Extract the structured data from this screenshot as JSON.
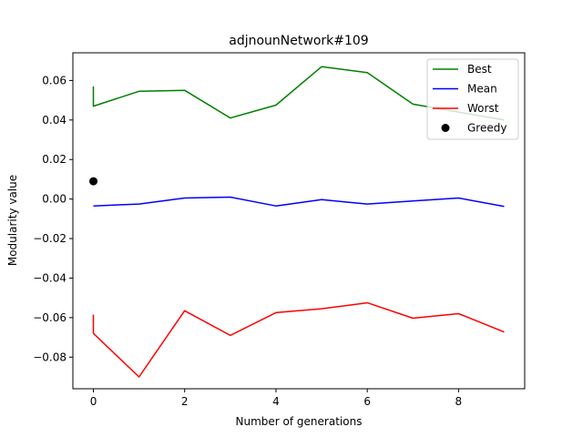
{
  "chart_data": {
    "type": "line",
    "title": "adjnounNetwork#109",
    "xlabel": "Number of generations",
    "ylabel": "Modularity value",
    "xlim": [
      -0.45,
      9.45
    ],
    "ylim": [
      -0.096,
      0.074
    ],
    "xticks": [
      0,
      2,
      4,
      6,
      8
    ],
    "xtick_labels": [
      "0",
      "2",
      "4",
      "6",
      "8"
    ],
    "yticks": [
      -0.08,
      -0.06,
      -0.04,
      -0.02,
      0.0,
      0.02,
      0.04,
      0.06
    ],
    "ytick_labels": [
      "−0.08",
      "−0.06",
      "−0.04",
      "−0.02",
      "0.00",
      "0.02",
      "0.04",
      "0.06"
    ],
    "grid": false,
    "legend_position": "top-right",
    "series": [
      {
        "name": "Best",
        "color": "#008000",
        "points": [
          [
            0,
            0.057
          ],
          [
            0,
            0.047
          ],
          [
            1,
            0.0545
          ],
          [
            2,
            0.055
          ],
          [
            3,
            0.041
          ],
          [
            4,
            0.0475
          ],
          [
            5,
            0.067
          ],
          [
            6,
            0.064
          ],
          [
            7,
            0.048
          ],
          [
            8,
            0.044
          ],
          [
            9,
            0.04
          ]
        ]
      },
      {
        "name": "Mean",
        "color": "#0000ff",
        "points": [
          [
            0,
            -0.0035
          ],
          [
            1,
            -0.0025
          ],
          [
            2,
            0.0005
          ],
          [
            3,
            0.001
          ],
          [
            4,
            -0.0035
          ],
          [
            5,
            -0.0003
          ],
          [
            6,
            -0.0025
          ],
          [
            7,
            -0.001
          ],
          [
            8,
            0.0005
          ],
          [
            9,
            -0.0037
          ]
        ]
      },
      {
        "name": "Worst",
        "color": "#ff0000",
        "points": [
          [
            0,
            -0.0585
          ],
          [
            0,
            -0.068
          ],
          [
            1,
            -0.09
          ],
          [
            2,
            -0.0565
          ],
          [
            3,
            -0.069
          ],
          [
            4,
            -0.0575
          ],
          [
            5,
            -0.0555
          ],
          [
            6,
            -0.0525
          ],
          [
            7,
            -0.0603
          ],
          [
            8,
            -0.058
          ],
          [
            9,
            -0.0673
          ]
        ]
      }
    ],
    "scatter": [
      {
        "name": "Greedy",
        "color": "#000000",
        "points": [
          [
            0,
            0.009
          ]
        ]
      }
    ],
    "legend": [
      {
        "label": "Best",
        "kind": "line",
        "color": "#008000"
      },
      {
        "label": "Mean",
        "kind": "line",
        "color": "#0000ff"
      },
      {
        "label": "Worst",
        "kind": "line",
        "color": "#ff0000"
      },
      {
        "label": "Greedy",
        "kind": "marker",
        "color": "#000000"
      }
    ]
  }
}
